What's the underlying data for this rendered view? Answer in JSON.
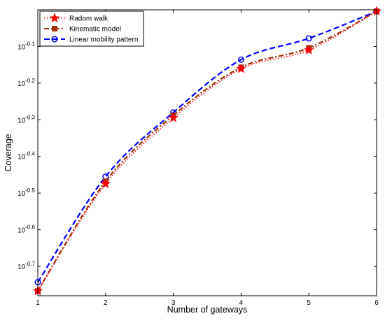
{
  "chart_data": {
    "type": "line",
    "xlabel": "Number of gateways",
    "ylabel": "Coverage",
    "x": [
      1,
      2,
      3,
      4,
      5,
      6
    ],
    "xlim": [
      1,
      6
    ],
    "ylim": [
      -0.78,
      0
    ],
    "yscale": "log (exponent shown)",
    "yticks": [
      -0.1,
      -0.2,
      -0.3,
      -0.4,
      -0.5,
      -0.6,
      -0.7
    ],
    "ytick_labels": [
      "10-0.1",
      "10-0.2",
      "10-0.3",
      "10-0.4",
      "10-0.5",
      "10-0.6",
      "10-0.7"
    ],
    "xticks": [
      "1",
      "2",
      "3",
      "4",
      "5",
      "6"
    ],
    "grid": false,
    "legend_position": "top-left",
    "series": [
      {
        "name": "Radom walk",
        "values": [
          -0.767,
          -0.475,
          -0.295,
          -0.161,
          -0.11,
          -0.004
        ],
        "color": "#ff0000",
        "linestyle": "dotted",
        "marker": "star"
      },
      {
        "name": "Kinematic model",
        "values": [
          -0.767,
          -0.468,
          -0.288,
          -0.157,
          -0.104,
          -0.004
        ],
        "color": "#a0300a",
        "linestyle": "dashdot",
        "marker": "square"
      },
      {
        "name": "Linear mobility pattern",
        "values": [
          -0.743,
          -0.455,
          -0.28,
          -0.136,
          -0.078,
          -0.004
        ],
        "color": "#0000ff",
        "linestyle": "dashed",
        "marker": "circle"
      }
    ]
  }
}
